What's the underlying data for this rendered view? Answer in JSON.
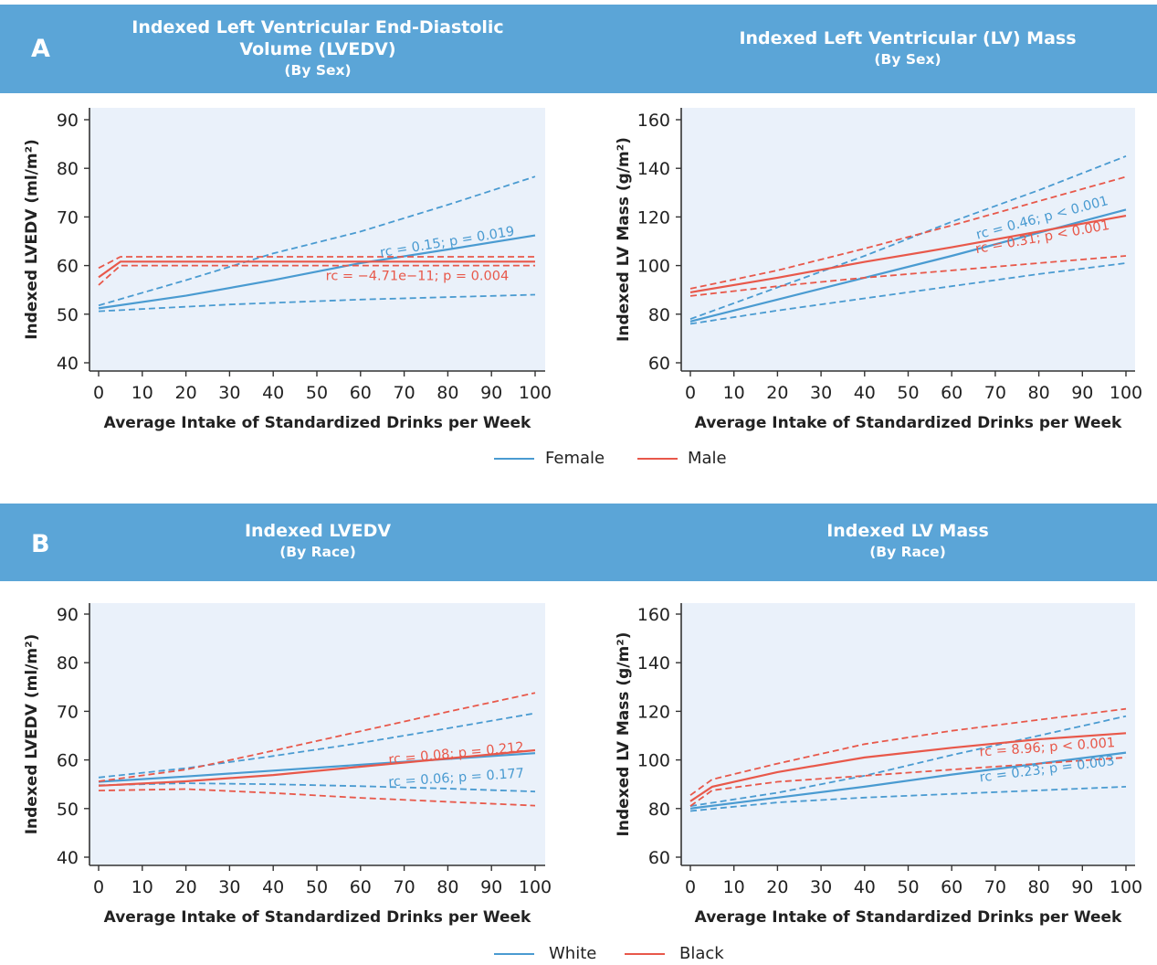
{
  "panels": [
    {
      "letter": "A",
      "titles": [
        {
          "main": "Indexed Left Ventricular End-Diastolic Volume (LVEDV)",
          "sub": "(By Sex)"
        },
        {
          "main": "Indexed Left Ventricular (LV) Mass",
          "sub": "(By Sex)"
        }
      ],
      "legend": [
        {
          "label": "Female",
          "color": "#4a9bd1"
        },
        {
          "label": "Male",
          "color": "#e8584a"
        }
      ]
    },
    {
      "letter": "B",
      "titles": [
        {
          "main": "Indexed LVEDV",
          "sub": "(By Race)"
        },
        {
          "main": "Indexed LV Mass",
          "sub": "(By Race)"
        }
      ],
      "legend": [
        {
          "label": "White",
          "color": "#4a9bd1"
        },
        {
          "label": "Black",
          "color": "#e8584a"
        }
      ]
    }
  ],
  "chart_data": [
    {
      "type": "line",
      "title": "Indexed Left Ventricular End-Diastolic Volume (LVEDV) (By Sex)",
      "xlabel": "Average Intake of Standardized Drinks per Week",
      "ylabel": "Indexed LVEDV (ml/m²)",
      "xlim": [
        0,
        100
      ],
      "ylim": [
        40,
        90
      ],
      "xticks": [
        0,
        10,
        20,
        30,
        40,
        50,
        60,
        70,
        80,
        90,
        100
      ],
      "yticks": [
        40,
        50,
        60,
        70,
        80,
        90
      ],
      "series": [
        {
          "name": "Female",
          "color": "#4a9bd1",
          "style": "solid",
          "points": [
            [
              0,
              51.2
            ],
            [
              20,
              53.8
            ],
            [
              40,
              57
            ],
            [
              60,
              60.5
            ],
            [
              80,
              63.3
            ],
            [
              100,
              66.2
            ]
          ]
        },
        {
          "name": "Female",
          "color": "#4a9bd1",
          "style": "dashed",
          "points": [
            [
              0,
              51.8
            ],
            [
              20,
              57
            ],
            [
              40,
              62.5
            ],
            [
              60,
              67
            ],
            [
              80,
              72.5
            ],
            [
              100,
              78.3
            ]
          ]
        },
        {
          "name": "Female",
          "color": "#4a9bd1",
          "style": "dashed",
          "points": [
            [
              0,
              50.6
            ],
            [
              30,
              52
            ],
            [
              60,
              53
            ],
            [
              100,
              54
            ]
          ]
        },
        {
          "name": "Male",
          "color": "#e8584a",
          "style": "solid",
          "points": [
            [
              0,
              57.6
            ],
            [
              5,
              60.8
            ],
            [
              100,
              60.8
            ]
          ]
        },
        {
          "name": "Male",
          "color": "#e8584a",
          "style": "dashed",
          "points": [
            [
              0,
              59.5
            ],
            [
              5,
              61.8
            ],
            [
              100,
              61.8
            ]
          ]
        },
        {
          "name": "Male",
          "color": "#e8584a",
          "style": "dashed",
          "points": [
            [
              0,
              56
            ],
            [
              5,
              60
            ],
            [
              100,
              60
            ]
          ]
        }
      ],
      "annotations": [
        {
          "text": "rc = 0.15; p = 0.019",
          "color": "#4a9bd1",
          "x": 80,
          "y": 64
        },
        {
          "text": "rc = −4.71e−11; p = 0.004",
          "color": "#e8584a",
          "x": 73,
          "y": 57
        }
      ]
    },
    {
      "type": "line",
      "title": "Indexed Left Ventricular (LV) Mass (By Sex)",
      "xlabel": "Average Intake of Standardized Drinks per Week",
      "ylabel": "Indexed LV Mass (g/m²)",
      "xlim": [
        0,
        100
      ],
      "ylim": [
        60,
        160
      ],
      "xticks": [
        0,
        10,
        20,
        30,
        40,
        50,
        60,
        70,
        80,
        90,
        100
      ],
      "yticks": [
        60,
        80,
        100,
        120,
        140,
        160
      ],
      "series": [
        {
          "name": "Female",
          "color": "#4a9bd1",
          "style": "solid",
          "points": [
            [
              0,
              77
            ],
            [
              20,
              86
            ],
            [
              40,
              95
            ],
            [
              60,
              104
            ],
            [
              80,
              113.5
            ],
            [
              100,
              123
            ]
          ]
        },
        {
          "name": "Female",
          "color": "#4a9bd1",
          "style": "dashed",
          "points": [
            [
              0,
              78
            ],
            [
              20,
              91
            ],
            [
              40,
              104
            ],
            [
              60,
              118
            ],
            [
              80,
              131
            ],
            [
              100,
              145
            ]
          ]
        },
        {
          "name": "Female",
          "color": "#4a9bd1",
          "style": "dashed",
          "points": [
            [
              0,
              76
            ],
            [
              20,
              81.5
            ],
            [
              40,
              86.5
            ],
            [
              60,
              91.5
            ],
            [
              80,
              96.5
            ],
            [
              100,
              101
            ]
          ]
        },
        {
          "name": "Male",
          "color": "#e8584a",
          "style": "solid",
          "points": [
            [
              0,
              89
            ],
            [
              20,
              95
            ],
            [
              40,
              101.5
            ],
            [
              60,
              107.5
            ],
            [
              80,
              114
            ],
            [
              100,
              120.5
            ]
          ]
        },
        {
          "name": "Male",
          "color": "#e8584a",
          "style": "dashed",
          "points": [
            [
              0,
              90.5
            ],
            [
              20,
              98
            ],
            [
              40,
              107
            ],
            [
              60,
              116.5
            ],
            [
              80,
              126.5
            ],
            [
              100,
              136.5
            ]
          ]
        },
        {
          "name": "Male",
          "color": "#e8584a",
          "style": "dashed",
          "points": [
            [
              0,
              87.5
            ],
            [
              20,
              91.5
            ],
            [
              40,
              95
            ],
            [
              60,
              98
            ],
            [
              80,
              101
            ],
            [
              100,
              104
            ]
          ]
        }
      ],
      "annotations": [
        {
          "text": "rc = 0.46; p <  0.001",
          "color": "#4a9bd1",
          "x": 81,
          "y": 118
        },
        {
          "text": "rc = 0.31; p <  0.001",
          "color": "#e8584a",
          "x": 81,
          "y": 110
        }
      ]
    },
    {
      "type": "line",
      "title": "Indexed LVEDV (By Race)",
      "xlabel": "Average Intake of Standardized Drinks per Week",
      "ylabel": "Indexed LVEDV (ml/m²)",
      "xlim": [
        0,
        100
      ],
      "ylim": [
        40,
        90
      ],
      "xticks": [
        0,
        10,
        20,
        30,
        40,
        50,
        60,
        70,
        80,
        90,
        100
      ],
      "yticks": [
        40,
        50,
        60,
        70,
        80,
        90
      ],
      "series": [
        {
          "name": "White",
          "color": "#4a9bd1",
          "style": "solid",
          "points": [
            [
              0,
              55.5
            ],
            [
              20,
              56.6
            ],
            [
              40,
              57.8
            ],
            [
              60,
              59
            ],
            [
              80,
              60.2
            ],
            [
              100,
              61.4
            ]
          ]
        },
        {
          "name": "White",
          "color": "#4a9bd1",
          "style": "dashed",
          "points": [
            [
              0,
              56.4
            ],
            [
              20,
              58.3
            ],
            [
              40,
              60.8
            ],
            [
              60,
              63.5
            ],
            [
              80,
              66.5
            ],
            [
              100,
              69.6
            ]
          ]
        },
        {
          "name": "White",
          "color": "#4a9bd1",
          "style": "dashed",
          "points": [
            [
              0,
              54.8
            ],
            [
              20,
              55.2
            ],
            [
              40,
              55
            ],
            [
              60,
              54.6
            ],
            [
              80,
              54.1
            ],
            [
              100,
              53.5
            ]
          ]
        },
        {
          "name": "Black",
          "color": "#e8584a",
          "style": "solid",
          "points": [
            [
              0,
              54.7
            ],
            [
              20,
              55.6
            ],
            [
              40,
              56.9
            ],
            [
              60,
              58.6
            ],
            [
              80,
              60.3
            ],
            [
              100,
              62
            ]
          ]
        },
        {
          "name": "Black",
          "color": "#e8584a",
          "style": "dashed",
          "points": [
            [
              0,
              55.6
            ],
            [
              20,
              58
            ],
            [
              40,
              61.9
            ],
            [
              60,
              65.9
            ],
            [
              80,
              69.9
            ],
            [
              100,
              73.8
            ]
          ]
        },
        {
          "name": "Black",
          "color": "#e8584a",
          "style": "dashed",
          "points": [
            [
              0,
              53.7
            ],
            [
              20,
              54
            ],
            [
              40,
              53.2
            ],
            [
              60,
              52.2
            ],
            [
              80,
              51.4
            ],
            [
              100,
              50.6
            ]
          ]
        }
      ],
      "annotations": [
        {
          "text": "rc = 0.08; p = 0.212",
          "color": "#e8584a",
          "x": 82,
          "y": 60.5
        },
        {
          "text": "rc = 0.06; p = 0.177",
          "color": "#4a9bd1",
          "x": 82,
          "y": 55.5
        }
      ]
    },
    {
      "type": "line",
      "title": "Indexed LV Mass (By Race)",
      "xlabel": "Average Intake of Standardized Drinks per Week",
      "ylabel": "Indexed LV Mass (g/m²)",
      "xlim": [
        0,
        100
      ],
      "ylim": [
        60,
        160
      ],
      "xticks": [
        0,
        10,
        20,
        30,
        40,
        50,
        60,
        70,
        80,
        90,
        100
      ],
      "yticks": [
        60,
        80,
        100,
        120,
        140,
        160
      ],
      "series": [
        {
          "name": "White",
          "color": "#4a9bd1",
          "style": "solid",
          "points": [
            [
              0,
              80
            ],
            [
              20,
              84.5
            ],
            [
              40,
              89
            ],
            [
              60,
              94
            ],
            [
              80,
              98.5
            ],
            [
              100,
              103
            ]
          ]
        },
        {
          "name": "White",
          "color": "#4a9bd1",
          "style": "dashed",
          "points": [
            [
              0,
              81
            ],
            [
              20,
              86.5
            ],
            [
              40,
              93.5
            ],
            [
              60,
              102
            ],
            [
              80,
              110
            ],
            [
              100,
              118
            ]
          ]
        },
        {
          "name": "White",
          "color": "#4a9bd1",
          "style": "dashed",
          "points": [
            [
              0,
              79
            ],
            [
              20,
              82.5
            ],
            [
              40,
              84.5
            ],
            [
              60,
              86
            ],
            [
              80,
              87.5
            ],
            [
              100,
              89
            ]
          ]
        },
        {
          "name": "Black",
          "color": "#e8584a",
          "style": "solid",
          "points": [
            [
              0,
              83
            ],
            [
              5,
              89
            ],
            [
              20,
              95
            ],
            [
              40,
              101
            ],
            [
              60,
              105
            ],
            [
              80,
              108.5
            ],
            [
              100,
              111
            ]
          ]
        },
        {
          "name": "Black",
          "color": "#e8584a",
          "style": "dashed",
          "points": [
            [
              0,
              85.5
            ],
            [
              5,
              92
            ],
            [
              20,
              98.5
            ],
            [
              40,
              106.5
            ],
            [
              60,
              112
            ],
            [
              80,
              116.5
            ],
            [
              100,
              121
            ]
          ]
        },
        {
          "name": "Black",
          "color": "#e8584a",
          "style": "dashed",
          "points": [
            [
              0,
              81
            ],
            [
              5,
              87.5
            ],
            [
              20,
              91
            ],
            [
              40,
              93.5
            ],
            [
              60,
              96
            ],
            [
              80,
              98.5
            ],
            [
              100,
              101
            ]
          ]
        }
      ],
      "annotations": [
        {
          "text": "rc = 8.96; p < 0.001",
          "color": "#e8584a",
          "x": 82,
          "y": 103.5
        },
        {
          "text": "rc = 0.23; p = 0.003",
          "color": "#4a9bd1",
          "x": 82,
          "y": 94.5
        }
      ]
    }
  ]
}
